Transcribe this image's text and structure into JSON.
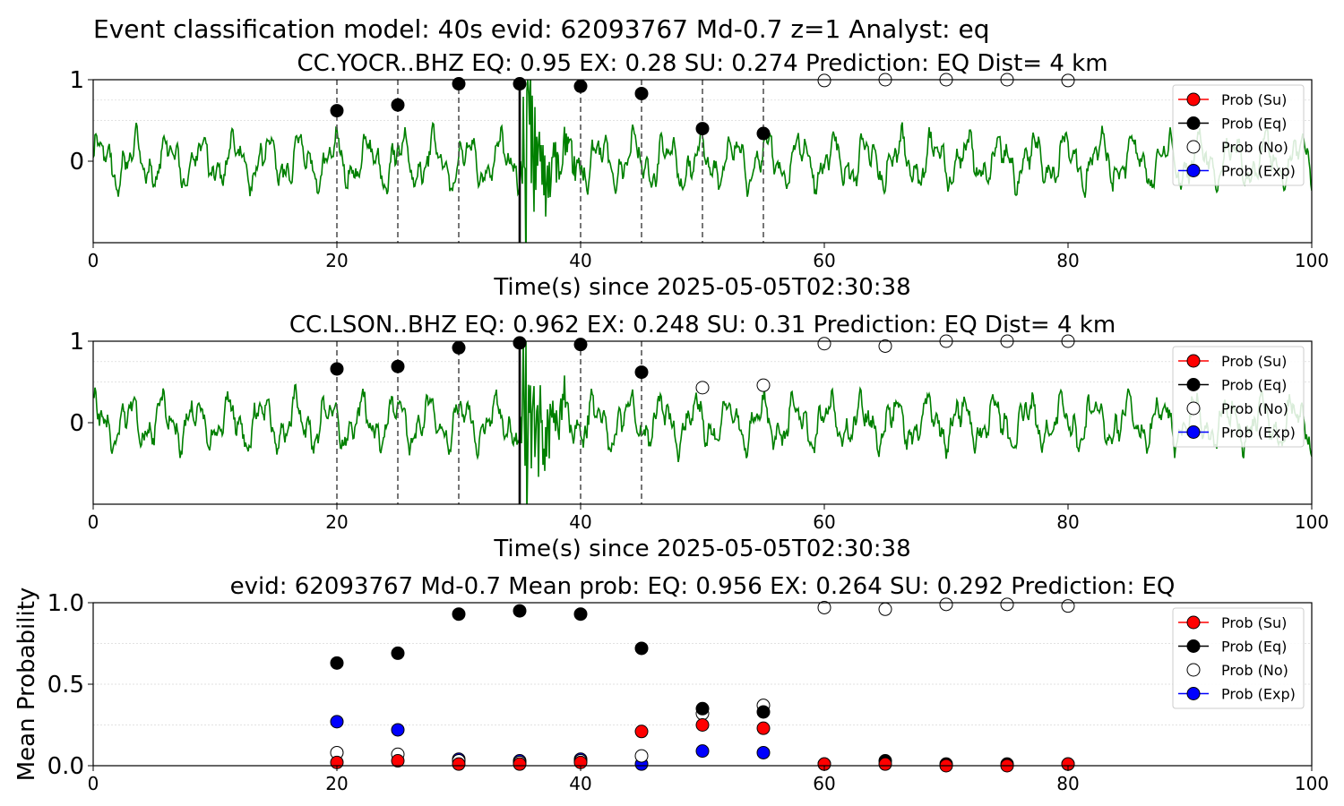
{
  "suptitle": "Event classification model: 40s evid: 62093767 Md-0.7 z=1 Analyst: eq",
  "colors": {
    "trace": "#008000",
    "su": "#ff0000",
    "eq": "#000000",
    "no": "#ffffff",
    "exp": "#0000ff",
    "grid": "#d9d9d9"
  },
  "legend": [
    "Prob (Su)",
    "Prob (Eq)",
    "Prob (No)",
    "Prob (Exp)"
  ],
  "chart_data": [
    {
      "type": "scatter",
      "title": "CC.YOCR..BHZ   EQ: 0.95  EX: 0.28  SU: 0.274   Prediction: EQ    Dist= 4 km",
      "xlabel": "Time(s) since 2025-05-05T02:30:38",
      "ylabel": "",
      "xlim": [
        0,
        100
      ],
      "ylim": [
        -1,
        1
      ],
      "xticks": [
        "0",
        "20",
        "40",
        "60",
        "80",
        "100"
      ],
      "yticks": [
        "0",
        "1"
      ],
      "pick_time": 35,
      "window_marks": [
        20,
        25,
        30,
        40,
        45,
        50,
        55
      ],
      "legend_position": "upper-right",
      "series": [
        {
          "name": "Prob (Eq)",
          "x": [
            20,
            25,
            30,
            35,
            40,
            45,
            50,
            55
          ],
          "y": [
            0.62,
            0.69,
            0.95,
            0.95,
            0.92,
            0.83,
            0.4,
            0.34
          ]
        },
        {
          "name": "Prob (No)",
          "x": [
            60,
            65,
            70,
            75,
            80
          ],
          "y": [
            0.99,
            1.0,
            1.0,
            1.0,
            0.99
          ]
        }
      ]
    },
    {
      "type": "scatter",
      "title": "CC.LSON..BHZ   EQ: 0.962  EX: 0.248  SU: 0.31   Prediction: EQ    Dist= 4 km",
      "xlabel": "Time(s) since 2025-05-05T02:30:38",
      "ylabel": "",
      "xlim": [
        0,
        100
      ],
      "ylim": [
        -1,
        1
      ],
      "xticks": [
        "0",
        "20",
        "40",
        "60",
        "80",
        "100"
      ],
      "yticks": [
        "0",
        "1"
      ],
      "pick_time": 35,
      "window_marks": [
        20,
        25,
        30,
        40,
        45
      ],
      "legend_position": "upper-right",
      "series": [
        {
          "name": "Prob (Eq)",
          "x": [
            20,
            25,
            30,
            35,
            40,
            45
          ],
          "y": [
            0.66,
            0.69,
            0.92,
            0.98,
            0.96,
            0.62
          ]
        },
        {
          "name": "Prob (No)",
          "x": [
            50,
            55,
            60,
            65,
            70,
            75,
            80
          ],
          "y": [
            0.43,
            0.46,
            0.97,
            0.94,
            1.0,
            1.0,
            1.0
          ]
        }
      ]
    },
    {
      "type": "scatter",
      "title": "evid: 62093767  Md-0.7   Mean prob:   EQ: 0.956  EX: 0.264  SU: 0.292   Prediction: EQ",
      "xlabel": "",
      "ylabel": "Mean Probability",
      "xlim": [
        0,
        100
      ],
      "ylim": [
        0,
        1
      ],
      "xticks": [
        "0",
        "20",
        "40",
        "60",
        "80",
        "100"
      ],
      "yticks": [
        "0.0",
        "0.5",
        "1.0"
      ],
      "legend_position": "upper-right",
      "series": [
        {
          "name": "Prob (Exp)",
          "x": [
            20,
            25,
            30,
            35,
            40,
            45,
            50,
            55
          ],
          "y": [
            0.27,
            0.22,
            0.04,
            0.03,
            0.04,
            0.01,
            0.09,
            0.08
          ]
        },
        {
          "name": "Prob (No)",
          "x": [
            20,
            25,
            30,
            35,
            40,
            45,
            50,
            55,
            60,
            65,
            70,
            75,
            80
          ],
          "y": [
            0.08,
            0.07,
            0.03,
            0.02,
            0.03,
            0.06,
            0.32,
            0.37,
            0.97,
            0.96,
            0.99,
            0.99,
            0.98
          ]
        },
        {
          "name": "Prob (Eq)",
          "x": [
            20,
            25,
            30,
            35,
            40,
            45,
            50,
            55,
            60,
            65,
            70,
            75,
            80
          ],
          "y": [
            0.63,
            0.69,
            0.93,
            0.95,
            0.93,
            0.72,
            0.35,
            0.33,
            0.01,
            0.03,
            0.01,
            0.01,
            0.01
          ]
        },
        {
          "name": "Prob (Su)",
          "x": [
            20,
            25,
            30,
            35,
            40,
            45,
            50,
            55,
            60,
            65,
            70,
            75,
            80
          ],
          "y": [
            0.02,
            0.03,
            0.01,
            0.01,
            0.02,
            0.21,
            0.25,
            0.23,
            0.01,
            0.01,
            0.0,
            0.0,
            0.01
          ]
        }
      ]
    }
  ]
}
